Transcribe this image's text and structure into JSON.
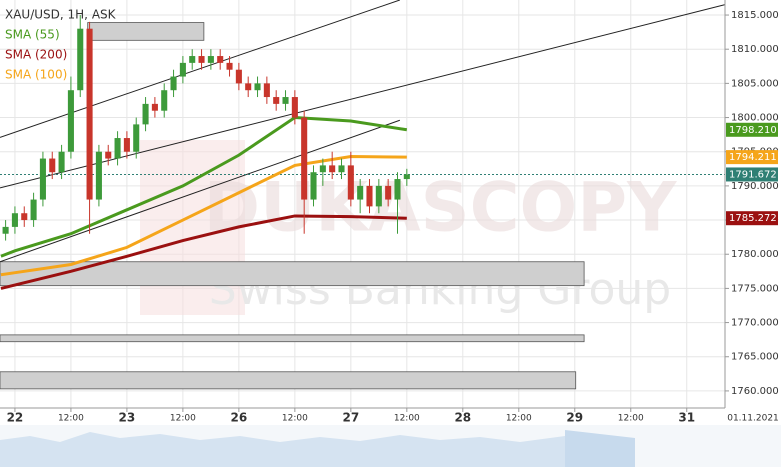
{
  "chart_data": {
    "type": "candlestick",
    "title": "XAU/USD, 1H, ASK",
    "up_color": "#3d9a3a",
    "down_color": "#c8352b",
    "x": [
      -2,
      0,
      2,
      4,
      6,
      8,
      10,
      12,
      14,
      16,
      18,
      20,
      22,
      24,
      26,
      28,
      30,
      32,
      34,
      36,
      38,
      40,
      42,
      44,
      46,
      48,
      50,
      52,
      54,
      56,
      58,
      60,
      62,
      64,
      66,
      68,
      70,
      72,
      74,
      76,
      78,
      80,
      82,
      84
    ],
    "open": [
      1783,
      1784,
      1786,
      1785,
      1788,
      1794,
      1792,
      1795,
      1804,
      1813,
      1788,
      1795,
      1794,
      1797,
      1795,
      1799,
      1802,
      1801,
      1804,
      1806,
      1808,
      1809,
      1808,
      1809,
      1808,
      1807,
      1805,
      1804,
      1805,
      1803,
      1802,
      1803,
      1800,
      1788,
      1792,
      1793,
      1792,
      1793,
      1788,
      1790,
      1787,
      1790,
      1788,
      1791
    ],
    "high": [
      1785,
      1787,
      1787,
      1789,
      1795,
      1795,
      1796,
      1806,
      1815,
      1814,
      1796,
      1796,
      1798,
      1798,
      1800,
      1803,
      1803,
      1805,
      1807,
      1809,
      1810,
      1810,
      1810,
      1810,
      1809,
      1808,
      1806,
      1806,
      1806,
      1804,
      1804,
      1804,
      1801,
      1793,
      1794,
      1795,
      1794,
      1795,
      1791,
      1791,
      1791,
      1791,
      1792,
      1792.5
    ],
    "low": [
      1782,
      1783,
      1784,
      1784,
      1787,
      1791,
      1791,
      1794,
      1803,
      1783,
      1787,
      1793,
      1793,
      1794,
      1794,
      1798,
      1800,
      1800,
      1803,
      1805,
      1807,
      1807,
      1807,
      1807,
      1806,
      1804,
      1803,
      1803,
      1802,
      1801,
      1801,
      1799,
      1783,
      1787,
      1790,
      1791,
      1791,
      1787,
      1786,
      1786,
      1786,
      1787,
      1783,
      1790
    ],
    "close": [
      1784,
      1786,
      1785,
      1788,
      1794,
      1792,
      1795,
      1804,
      1813,
      1788,
      1795,
      1794,
      1797,
      1795,
      1799,
      1802,
      1801,
      1804,
      1806,
      1808,
      1809,
      1808,
      1809,
      1808,
      1807,
      1805,
      1804,
      1805,
      1803,
      1802,
      1803,
      1800,
      1788,
      1792,
      1793,
      1792,
      1793,
      1788,
      1790,
      1787,
      1790,
      1788,
      1791,
      1791.672
    ],
    "current_price": {
      "value": 1791.672,
      "label": "1791.672",
      "color": "#2f7f74"
    },
    "series": [
      {
        "name": "SMA (55)",
        "color": "#4a9a1e",
        "x": [
          -3,
          0,
          12,
          24,
          36,
          48,
          60,
          72,
          84
        ],
        "values": [
          1779.7,
          1780.5,
          1783,
          1786.5,
          1790,
          1794.5,
          1800,
          1799.5,
          1798.21
        ],
        "last_label": {
          "value": 1798.21,
          "label": "1798.210"
        }
      },
      {
        "name": "SMA (200)",
        "color": "#9b1010",
        "x": [
          -3,
          12,
          24,
          36,
          48,
          60,
          72,
          84
        ],
        "values": [
          1775,
          1777.5,
          1779.7,
          1782,
          1784,
          1785.6,
          1785.5,
          1785.272
        ],
        "last_label": {
          "value": 1785.272,
          "label": "1785.272"
        }
      },
      {
        "name": "SMA (100)",
        "color": "#f5a51a",
        "x": [
          -3,
          0,
          12,
          24,
          36,
          48,
          60,
          72,
          84
        ],
        "values": [
          1777,
          1777.3,
          1778.5,
          1781,
          1785,
          1789,
          1793,
          1794.3,
          1794.211
        ],
        "last_label": {
          "value": 1794.211,
          "label": "1794.211"
        }
      }
    ],
    "trendlines": [
      {
        "x": [
          -3.2,
          82.5
        ],
        "y": [
          1797.1,
          1817.2
        ]
      },
      {
        "x": [
          -3.2,
          152.1
        ],
        "y": [
          1789.7,
          1816.5
        ]
      },
      {
        "x": [
          -3.2,
          82.5
        ],
        "y": [
          1778.9,
          1799.6
        ]
      }
    ],
    "zones": [
      {
        "x": [
          15.6,
          40.5
        ],
        "y": [
          1811.3,
          1813.9
        ]
      },
      {
        "x": [
          -3.2,
          122
        ],
        "y": [
          1775.4,
          1778.9
        ]
      },
      {
        "x": [
          -3.2,
          122
        ],
        "y": [
          1767.2,
          1768.2
        ]
      },
      {
        "x": [
          -3.2,
          120.2
        ],
        "y": [
          1760.3,
          1762.8
        ]
      }
    ],
    "xlim": [
      -3.2,
      152.2
    ],
    "ylim": [
      1757.5,
      1817.2
    ],
    "xticks": [
      {
        "value": 0,
        "label": "22"
      },
      {
        "value": 12,
        "label": "12:00"
      },
      {
        "value": 24,
        "label": "23"
      },
      {
        "value": 36,
        "label": "12:00"
      },
      {
        "value": 48,
        "label": "26"
      },
      {
        "value": 60,
        "label": "12:00"
      },
      {
        "value": 72,
        "label": "27"
      },
      {
        "value": 84,
        "label": "12:00"
      },
      {
        "value": 96,
        "label": "28"
      },
      {
        "value": 108,
        "label": "12:00"
      },
      {
        "value": 120,
        "label": "29"
      },
      {
        "value": 132,
        "label": "12:00"
      },
      {
        "value": 144,
        "label": "31"
      }
    ],
    "yticks": [
      {
        "value": 1760,
        "label": "1760.000"
      },
      {
        "value": 1765,
        "label": "1765.000"
      },
      {
        "value": 1770,
        "label": "1770.000"
      },
      {
        "value": 1775,
        "label": "1775.000"
      },
      {
        "value": 1780,
        "label": "1780.000"
      },
      {
        "value": 1785,
        "label": "1785.000"
      },
      {
        "value": 1790,
        "label": "1790.000"
      },
      {
        "value": 1795,
        "label": "1795.000"
      },
      {
        "value": 1800,
        "label": "1800.000"
      },
      {
        "value": 1805,
        "label": "1805.000"
      },
      {
        "value": 1810,
        "label": "1810.000"
      },
      {
        "value": 1815,
        "label": "1815.000"
      }
    ],
    "date_label": "01.11.2021",
    "watermark": [
      "DUKASCOPY",
      "Swiss Banking Group"
    ],
    "grid": true
  }
}
